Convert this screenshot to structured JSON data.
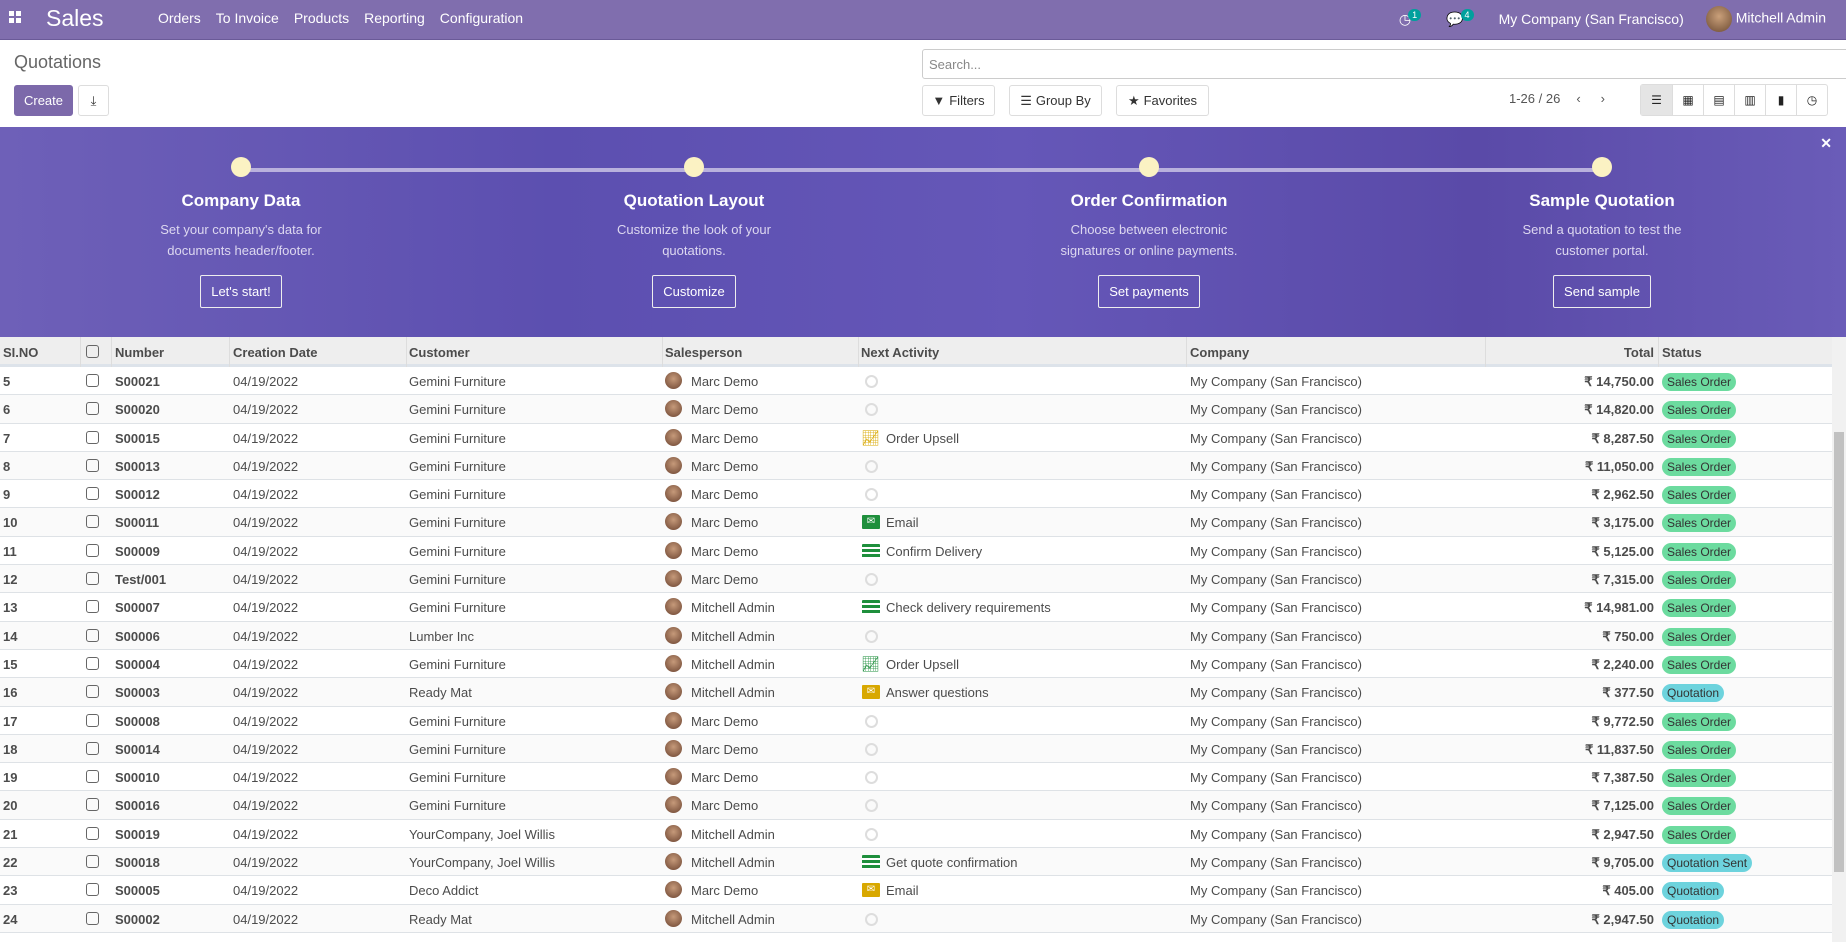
{
  "nav": {
    "app": "Sales",
    "menu": [
      "Orders",
      "To Invoice",
      "Products",
      "Reporting",
      "Configuration"
    ],
    "activity_count": "1",
    "message_count": "4",
    "company": "My Company (San Francisco)",
    "user": "Mitchell Admin"
  },
  "control": {
    "title": "Quotations",
    "create": "Create",
    "search_placeholder": "Search...",
    "filters": "Filters",
    "group_by": "Group By",
    "favorites": "Favorites",
    "pager": "1-26 / 26"
  },
  "banner": {
    "steps": [
      {
        "title": "Company Data",
        "desc": "Set your company's data for documents header/footer.",
        "button": "Let's start!"
      },
      {
        "title": "Quotation Layout",
        "desc": "Customize the look of your quotations.",
        "button": "Customize"
      },
      {
        "title": "Order Confirmation",
        "desc": "Choose between electronic signatures or online payments.",
        "button": "Set payments"
      },
      {
        "title": "Sample Quotation",
        "desc": "Send a quotation to test the customer portal.",
        "button": "Send sample"
      }
    ]
  },
  "columns": {
    "slno": "SI.NO",
    "number": "Number",
    "date": "Creation Date",
    "customer": "Customer",
    "salesperson": "Salesperson",
    "activity": "Next Activity",
    "company": "Company",
    "total": "Total",
    "status": "Status"
  },
  "colors": {
    "sales_order": "#6cdb9f",
    "quotation": "#6dd3dd",
    "green_act": "#1e8f3c",
    "yellow_act": "#d8a800"
  },
  "rows": [
    {
      "no": "5",
      "number": "S00021",
      "date": "04/19/2022",
      "customer": "Gemini Furniture",
      "salesperson": "Marc Demo",
      "activity": "",
      "act_icon": "clock",
      "company": "My Company (San Francisco)",
      "total": "₹ 14,750.00",
      "status": "Sales Order"
    },
    {
      "no": "6",
      "number": "S00020",
      "date": "04/19/2022",
      "customer": "Gemini Furniture",
      "salesperson": "Marc Demo",
      "activity": "",
      "act_icon": "clock",
      "company": "My Company (San Francisco)",
      "total": "₹ 14,820.00",
      "status": "Sales Order"
    },
    {
      "no": "7",
      "number": "S00015",
      "date": "04/19/2022",
      "customer": "Gemini Furniture",
      "salesperson": "Marc Demo",
      "activity": "Order Upsell",
      "act_icon": "chart-yellow",
      "company": "My Company (San Francisco)",
      "total": "₹ 8,287.50",
      "status": "Sales Order"
    },
    {
      "no": "8",
      "number": "S00013",
      "date": "04/19/2022",
      "customer": "Gemini Furniture",
      "salesperson": "Marc Demo",
      "activity": "",
      "act_icon": "clock",
      "company": "My Company (San Francisco)",
      "total": "₹ 11,050.00",
      "status": "Sales Order"
    },
    {
      "no": "9",
      "number": "S00012",
      "date": "04/19/2022",
      "customer": "Gemini Furniture",
      "salesperson": "Marc Demo",
      "activity": "",
      "act_icon": "clock",
      "company": "My Company (San Francisco)",
      "total": "₹ 2,962.50",
      "status": "Sales Order"
    },
    {
      "no": "10",
      "number": "S00011",
      "date": "04/19/2022",
      "customer": "Gemini Furniture",
      "salesperson": "Marc Demo",
      "activity": "Email",
      "act_icon": "envelope-green",
      "company": "My Company (San Francisco)",
      "total": "₹ 3,175.00",
      "status": "Sales Order"
    },
    {
      "no": "11",
      "number": "S00009",
      "date": "04/19/2022",
      "customer": "Gemini Furniture",
      "salesperson": "Marc Demo",
      "activity": "Confirm Delivery",
      "act_icon": "tasks-green",
      "company": "My Company (San Francisco)",
      "total": "₹ 5,125.00",
      "status": "Sales Order"
    },
    {
      "no": "12",
      "number": "Test/001",
      "date": "04/19/2022",
      "customer": "Gemini Furniture",
      "salesperson": "Marc Demo",
      "activity": "",
      "act_icon": "clock",
      "company": "My Company (San Francisco)",
      "total": "₹ 7,315.00",
      "status": "Sales Order"
    },
    {
      "no": "13",
      "number": "S00007",
      "date": "04/19/2022",
      "customer": "Gemini Furniture",
      "salesperson": "Mitchell Admin",
      "activity": "Check delivery requirements",
      "act_icon": "tasks-green",
      "company": "My Company (San Francisco)",
      "total": "₹ 14,981.00",
      "status": "Sales Order"
    },
    {
      "no": "14",
      "number": "S00006",
      "date": "04/19/2022",
      "customer": "Lumber Inc",
      "salesperson": "Mitchell Admin",
      "activity": "",
      "act_icon": "clock",
      "company": "My Company (San Francisco)",
      "total": "₹ 750.00",
      "status": "Sales Order"
    },
    {
      "no": "15",
      "number": "S00004",
      "date": "04/19/2022",
      "customer": "Gemini Furniture",
      "salesperson": "Mitchell Admin",
      "activity": "Order Upsell",
      "act_icon": "chart-green",
      "company": "My Company (San Francisco)",
      "total": "₹ 2,240.00",
      "status": "Sales Order"
    },
    {
      "no": "16",
      "number": "S00003",
      "date": "04/19/2022",
      "customer": "Ready Mat",
      "salesperson": "Mitchell Admin",
      "activity": "Answer questions",
      "act_icon": "envelope-yellow",
      "company": "My Company (San Francisco)",
      "total": "₹ 377.50",
      "status": "Quotation"
    },
    {
      "no": "17",
      "number": "S00008",
      "date": "04/19/2022",
      "customer": "Gemini Furniture",
      "salesperson": "Marc Demo",
      "activity": "",
      "act_icon": "clock",
      "company": "My Company (San Francisco)",
      "total": "₹ 9,772.50",
      "status": "Sales Order"
    },
    {
      "no": "18",
      "number": "S00014",
      "date": "04/19/2022",
      "customer": "Gemini Furniture",
      "salesperson": "Marc Demo",
      "activity": "",
      "act_icon": "clock",
      "company": "My Company (San Francisco)",
      "total": "₹ 11,837.50",
      "status": "Sales Order"
    },
    {
      "no": "19",
      "number": "S00010",
      "date": "04/19/2022",
      "customer": "Gemini Furniture",
      "salesperson": "Marc Demo",
      "activity": "",
      "act_icon": "clock",
      "company": "My Company (San Francisco)",
      "total": "₹ 7,387.50",
      "status": "Sales Order"
    },
    {
      "no": "20",
      "number": "S00016",
      "date": "04/19/2022",
      "customer": "Gemini Furniture",
      "salesperson": "Marc Demo",
      "activity": "",
      "act_icon": "clock",
      "company": "My Company (San Francisco)",
      "total": "₹ 7,125.00",
      "status": "Sales Order"
    },
    {
      "no": "21",
      "number": "S00019",
      "date": "04/19/2022",
      "customer": "YourCompany, Joel Willis",
      "salesperson": "Mitchell Admin",
      "activity": "",
      "act_icon": "clock",
      "company": "My Company (San Francisco)",
      "total": "₹ 2,947.50",
      "status": "Sales Order"
    },
    {
      "no": "22",
      "number": "S00018",
      "date": "04/19/2022",
      "customer": "YourCompany, Joel Willis",
      "salesperson": "Mitchell Admin",
      "activity": "Get quote confirmation",
      "act_icon": "tasks-green",
      "company": "My Company (San Francisco)",
      "total": "₹ 9,705.00",
      "status": "Quotation Sent"
    },
    {
      "no": "23",
      "number": "S00005",
      "date": "04/19/2022",
      "customer": "Deco Addict",
      "salesperson": "Marc Demo",
      "activity": "Email",
      "act_icon": "envelope-yellow",
      "company": "My Company (San Francisco)",
      "total": "₹ 405.00",
      "status": "Quotation"
    },
    {
      "no": "24",
      "number": "S00002",
      "date": "04/19/2022",
      "customer": "Ready Mat",
      "salesperson": "Mitchell Admin",
      "activity": "",
      "act_icon": "clock",
      "company": "My Company (San Francisco)",
      "total": "₹ 2,947.50",
      "status": "Quotation"
    }
  ]
}
